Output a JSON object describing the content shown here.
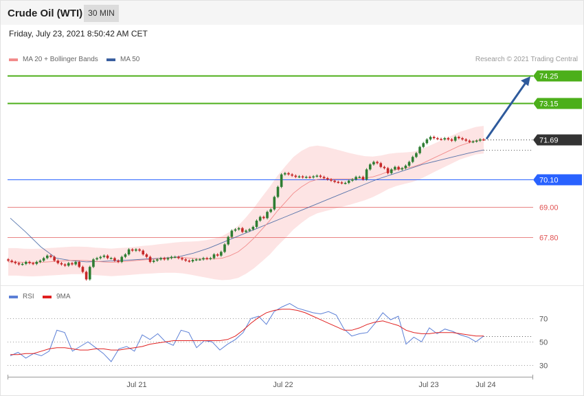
{
  "header": {
    "title": "Crude Oil (WTI)",
    "timeframe": "30 MIN"
  },
  "timestamp": "Friday, July 23, 2021 8:50:42 AM CET",
  "credit": "Research © 2021 Trading Central",
  "colors": {
    "accent_green": "#4caf1a",
    "current_price": "#333333",
    "support_blue": "#2962ff",
    "support_red": "#e05050",
    "ma20": "#f28b8b",
    "ma50": "#3a5fa0",
    "bollinger_fill": "#fde4e4",
    "candle_up": "#2e7d32",
    "candle_down": "#c62828",
    "arrow": "#2e5a9c",
    "rsi": "#5b7fd6",
    "rsi_ma": "#e02020"
  },
  "chart_data": [
    {
      "type": "candlestick",
      "title": "Crude Oil (WTI)",
      "legend": [
        {
          "name": "MA 20 + Bollinger Bands",
          "color": "#f28b8b"
        },
        {
          "name": "MA 50",
          "color": "#3a5fa0"
        }
      ],
      "x_ticks": [
        "Jul 21",
        "Jul 22",
        "Jul 23",
        "Jul 24"
      ],
      "ylim": [
        66.0,
        74.5
      ],
      "levels": [
        {
          "label": "74.25",
          "value": 74.25,
          "kind": "target"
        },
        {
          "label": "73.15",
          "value": 73.15,
          "kind": "target"
        },
        {
          "label": "71.69",
          "value": 71.69,
          "kind": "last-price"
        },
        {
          "label": "70.10",
          "value": 70.1,
          "kind": "pivot"
        },
        {
          "label": "69.00",
          "value": 69.0,
          "kind": "support"
        },
        {
          "label": "67.80",
          "value": 67.8,
          "kind": "support"
        }
      ],
      "projection": {
        "from": 71.69,
        "to": 74.25
      },
      "close_series": [
        66.85,
        66.8,
        66.75,
        66.7,
        66.72,
        66.8,
        66.75,
        66.72,
        66.8,
        66.85,
        66.95,
        67.05,
        67.0,
        66.85,
        66.75,
        66.7,
        66.65,
        66.75,
        66.7,
        66.8,
        66.6,
        66.4,
        66.1,
        66.6,
        66.9,
        66.95,
        67.0,
        67.05,
        66.95,
        66.95,
        66.85,
        66.8,
        67.0,
        67.1,
        67.3,
        67.25,
        67.3,
        67.25,
        67.1,
        67.0,
        66.8,
        66.85,
        66.9,
        66.95,
        66.9,
        66.95,
        67.0,
        67.0,
        66.95,
        66.9,
        66.85,
        66.82,
        66.88,
        66.9,
        66.9,
        66.95,
        66.92,
        66.95,
        67.1,
        67.05,
        67.2,
        67.5,
        67.8,
        68.05,
        68.1,
        68.15,
        68.0,
        68.05,
        68.1,
        68.2,
        68.45,
        68.6,
        68.55,
        68.8,
        68.9,
        69.4,
        69.8,
        70.3,
        70.35,
        70.3,
        70.25,
        70.2,
        70.22,
        70.18,
        70.2,
        70.18,
        70.22,
        70.25,
        70.2,
        70.15,
        70.1,
        70.05,
        70.0,
        69.98,
        69.95,
        69.96,
        70.05,
        70.1,
        70.2,
        70.2,
        70.1,
        70.5,
        70.7,
        70.8,
        70.75,
        70.6,
        70.55,
        70.35,
        70.5,
        70.6,
        70.5,
        70.55,
        70.65,
        70.8,
        71.0,
        71.15,
        71.4,
        71.55,
        71.7,
        71.8,
        71.75,
        71.72,
        71.7,
        71.75,
        71.7,
        71.65,
        71.8,
        71.75,
        71.7,
        71.65,
        71.6,
        71.62,
        71.65,
        71.7,
        71.69
      ],
      "ma20_series": [
        66.8,
        66.8,
        66.78,
        66.77,
        66.78,
        66.8,
        66.82,
        66.84,
        66.86,
        66.86,
        66.85,
        66.82,
        66.8,
        66.78,
        66.8,
        66.82,
        66.85,
        66.88,
        66.9,
        66.93,
        66.95,
        66.97,
        66.97,
        66.95,
        66.93,
        66.92,
        66.92,
        66.95,
        67.05,
        67.2,
        67.45,
        67.75,
        68.1,
        68.45,
        68.85,
        69.2,
        69.55,
        69.8,
        70.0,
        70.1,
        70.12,
        70.12,
        70.12,
        70.12,
        70.13,
        70.15,
        70.2,
        70.3,
        70.42,
        70.5,
        70.55,
        70.6,
        70.7,
        70.85,
        71.0,
        71.15,
        71.3,
        71.45,
        71.55,
        71.65,
        71.69
      ],
      "ma50_series": [
        68.55,
        68.0,
        67.4,
        66.95,
        66.85,
        66.8,
        66.82,
        66.85,
        66.88,
        66.92,
        66.95,
        67.0,
        67.15,
        67.35,
        67.6,
        67.85,
        68.1,
        68.35,
        68.6,
        68.85,
        69.1,
        69.35,
        69.6,
        69.85,
        70.1,
        70.3,
        70.5,
        70.7,
        70.85,
        71.0,
        71.15,
        71.28
      ]
    },
    {
      "type": "line",
      "legend": [
        {
          "name": "RSI",
          "color": "#5b7fd6"
        },
        {
          "name": "9MA",
          "color": "#e02020"
        }
      ],
      "ylim": [
        20,
        85
      ],
      "y_ticks": [
        "70",
        "50",
        "30"
      ],
      "series": [
        {
          "name": "RSI",
          "values": [
            38,
            41,
            36,
            40,
            38,
            42,
            60,
            58,
            42,
            46,
            50,
            45,
            40,
            33,
            44,
            46,
            42,
            56,
            52,
            57,
            50,
            47,
            60,
            58,
            45,
            51,
            50,
            43,
            48,
            52,
            58,
            70,
            72,
            65,
            76,
            80,
            83,
            79,
            77,
            75,
            74,
            76,
            73,
            61,
            55,
            57,
            58,
            66,
            75,
            69,
            72,
            48,
            54,
            50,
            62,
            57,
            61,
            59,
            56,
            54,
            50,
            55
          ]
        },
        {
          "name": "9MA",
          "values": [
            39,
            39,
            40,
            40,
            42,
            44,
            45,
            45,
            44,
            43,
            43,
            44,
            44,
            43,
            43,
            44,
            45,
            46,
            48,
            49,
            50,
            51,
            51,
            51,
            51,
            51,
            51,
            51,
            52,
            55,
            60,
            66,
            71,
            75,
            77,
            78,
            78,
            77,
            75,
            72,
            69,
            66,
            63,
            60,
            60,
            62,
            65,
            67,
            68,
            66,
            64,
            60,
            58,
            57,
            57,
            58,
            58,
            58,
            57,
            56,
            55,
            55
          ]
        }
      ]
    }
  ]
}
